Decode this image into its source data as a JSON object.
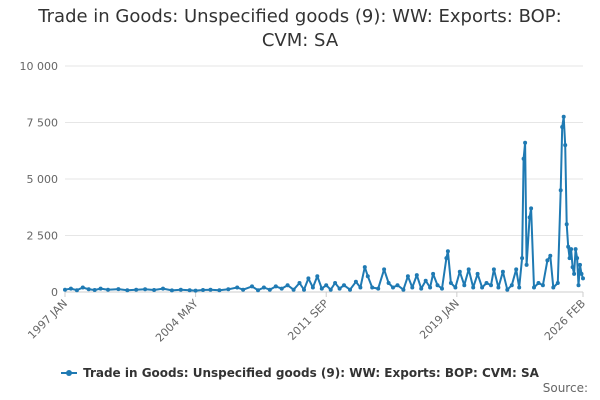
{
  "title_line1": "Trade in Goods: Unspecified goods (9): WW: Exports: BOP:",
  "title_line2": "CVM: SA",
  "source_label": "Source:",
  "colors": {
    "series": "#1f7ab3",
    "grid": "#e6e6e6",
    "axis_text": "#666666"
  },
  "chart_data": {
    "type": "line",
    "title": "Trade in Goods: Unspecified goods (9): WW: Exports: BOP: CVM: SA",
    "xlabel": "",
    "ylabel": "",
    "x_ticks": [
      "1997 JAN",
      "2004 MAY",
      "2011 SEP",
      "2019 JAN",
      "2026 FEB"
    ],
    "y_ticks": [
      "0",
      "2 500",
      "5 000",
      "7 500",
      "10 000"
    ],
    "ylim": [
      0,
      10000
    ],
    "x_range": [
      "1997-01",
      "2026-02"
    ],
    "grid": true,
    "legend": "bottom",
    "series": [
      {
        "name": "Trade in Goods: Unspecified goods (9): WW: Exports: BOP: CVM: SA",
        "points": [
          [
            "1997-01",
            100
          ],
          [
            "1997-05",
            150
          ],
          [
            "1997-09",
            80
          ],
          [
            "1998-01",
            200
          ],
          [
            "1998-05",
            120
          ],
          [
            "1998-09",
            90
          ],
          [
            "1999-01",
            150
          ],
          [
            "1999-06",
            100
          ],
          [
            "2000-01",
            130
          ],
          [
            "2000-07",
            80
          ],
          [
            "2001-01",
            100
          ],
          [
            "2001-07",
            120
          ],
          [
            "2002-01",
            90
          ],
          [
            "2002-07",
            150
          ],
          [
            "2003-01",
            70
          ],
          [
            "2003-07",
            100
          ],
          [
            "2004-01",
            80
          ],
          [
            "2004-05",
            60
          ],
          [
            "2004-10",
            90
          ],
          [
            "2005-03",
            100
          ],
          [
            "2005-09",
            80
          ],
          [
            "2006-03",
            120
          ],
          [
            "2006-09",
            200
          ],
          [
            "2007-01",
            100
          ],
          [
            "2007-07",
            250
          ],
          [
            "2007-11",
            80
          ],
          [
            "2008-03",
            200
          ],
          [
            "2008-07",
            100
          ],
          [
            "2008-11",
            250
          ],
          [
            "2009-03",
            150
          ],
          [
            "2009-07",
            300
          ],
          [
            "2009-11",
            100
          ],
          [
            "2010-03",
            400
          ],
          [
            "2010-06",
            100
          ],
          [
            "2010-09",
            600
          ],
          [
            "2010-12",
            200
          ],
          [
            "2011-03",
            700
          ],
          [
            "2011-06",
            150
          ],
          [
            "2011-09",
            300
          ],
          [
            "2011-12",
            100
          ],
          [
            "2012-03",
            400
          ],
          [
            "2012-06",
            150
          ],
          [
            "2012-09",
            300
          ],
          [
            "2013-01",
            100
          ],
          [
            "2013-05",
            450
          ],
          [
            "2013-08",
            200
          ],
          [
            "2013-11",
            1100
          ],
          [
            "2014-01",
            700
          ],
          [
            "2014-04",
            200
          ],
          [
            "2014-08",
            150
          ],
          [
            "2014-12",
            1000
          ],
          [
            "2015-03",
            400
          ],
          [
            "2015-06",
            200
          ],
          [
            "2015-09",
            300
          ],
          [
            "2016-01",
            100
          ],
          [
            "2016-04",
            700
          ],
          [
            "2016-07",
            200
          ],
          [
            "2016-10",
            750
          ],
          [
            "2017-01",
            150
          ],
          [
            "2017-04",
            500
          ],
          [
            "2017-07",
            200
          ],
          [
            "2017-09",
            800
          ],
          [
            "2017-12",
            300
          ],
          [
            "2018-03",
            150
          ],
          [
            "2018-06",
            1500
          ],
          [
            "2018-07",
            1800
          ],
          [
            "2018-09",
            400
          ],
          [
            "2018-12",
            200
          ],
          [
            "2019-03",
            900
          ],
          [
            "2019-06",
            300
          ],
          [
            "2019-09",
            1000
          ],
          [
            "2019-12",
            200
          ],
          [
            "2020-03",
            800
          ],
          [
            "2020-06",
            200
          ],
          [
            "2020-09",
            400
          ],
          [
            "2020-12",
            300
          ],
          [
            "2021-02",
            1000
          ],
          [
            "2021-05",
            200
          ],
          [
            "2021-08",
            900
          ],
          [
            "2021-11",
            100
          ],
          [
            "2022-02",
            300
          ],
          [
            "2022-05",
            1000
          ],
          [
            "2022-07",
            200
          ],
          [
            "2022-09",
            1500
          ],
          [
            "2022-10",
            5900
          ],
          [
            "2022-11",
            6600
          ],
          [
            "2022-12",
            1200
          ],
          [
            "2023-02",
            3300
          ],
          [
            "2023-03",
            3700
          ],
          [
            "2023-05",
            200
          ],
          [
            "2023-08",
            400
          ],
          [
            "2023-11",
            300
          ],
          [
            "2024-02",
            1400
          ],
          [
            "2024-04",
            1600
          ],
          [
            "2024-06",
            200
          ],
          [
            "2024-09",
            400
          ],
          [
            "2024-11",
            4500
          ],
          [
            "2024-12",
            7300
          ],
          [
            "2025-01",
            7750
          ],
          [
            "2025-02",
            6500
          ],
          [
            "2025-03",
            3000
          ],
          [
            "2025-04",
            2000
          ],
          [
            "2025-05",
            1500
          ],
          [
            "2025-06",
            1900
          ],
          [
            "2025-07",
            1100
          ],
          [
            "2025-08",
            800
          ],
          [
            "2025-09",
            1900
          ],
          [
            "2025-10",
            1500
          ],
          [
            "2025-11",
            300
          ],
          [
            "2025-12",
            1200
          ],
          [
            "2026-01",
            800
          ],
          [
            "2026-02",
            600
          ]
        ]
      }
    ]
  }
}
